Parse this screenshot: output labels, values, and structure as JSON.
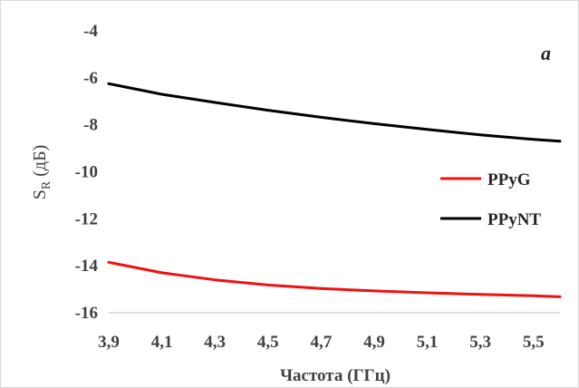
{
  "chart_data": {
    "type": "line",
    "title": "",
    "panel_label": "a",
    "xlabel": "Частота (ГГц)",
    "ylabel": {
      "main": "S",
      "sub": "R",
      "unit": " (дБ)"
    },
    "xlim": [
      3.9,
      5.6
    ],
    "ylim": [
      -16,
      -4
    ],
    "x_ticks": [
      3.9,
      4.1,
      4.3,
      4.5,
      4.7,
      4.9,
      5.1,
      5.3,
      5.5
    ],
    "x_tick_labels": [
      "3,9",
      "4,1",
      "4,3",
      "4,5",
      "4,7",
      "4,9",
      "5,1",
      "5,3",
      "5,5"
    ],
    "y_ticks": [
      -4,
      -6,
      -8,
      -10,
      -12,
      -14,
      -16
    ],
    "y_tick_labels": [
      "-4",
      "-6",
      "-8",
      "-10",
      "-12",
      "-14",
      "-16"
    ],
    "grid": false,
    "legend_position": "right",
    "series": [
      {
        "name": "PPyG",
        "color": "#ee1111",
        "x": [
          3.9,
          4.1,
          4.3,
          4.5,
          4.7,
          4.9,
          5.1,
          5.3,
          5.5,
          5.6
        ],
        "y": [
          -13.85,
          -14.3,
          -14.6,
          -14.82,
          -14.97,
          -15.07,
          -15.15,
          -15.22,
          -15.28,
          -15.32
        ]
      },
      {
        "name": "PPyNT",
        "color": "#000000",
        "x": [
          3.9,
          4.1,
          4.3,
          4.5,
          4.7,
          4.9,
          5.1,
          5.3,
          5.5,
          5.6
        ],
        "y": [
          -6.25,
          -6.7,
          -7.05,
          -7.38,
          -7.68,
          -7.95,
          -8.2,
          -8.43,
          -8.62,
          -8.7
        ]
      }
    ]
  }
}
